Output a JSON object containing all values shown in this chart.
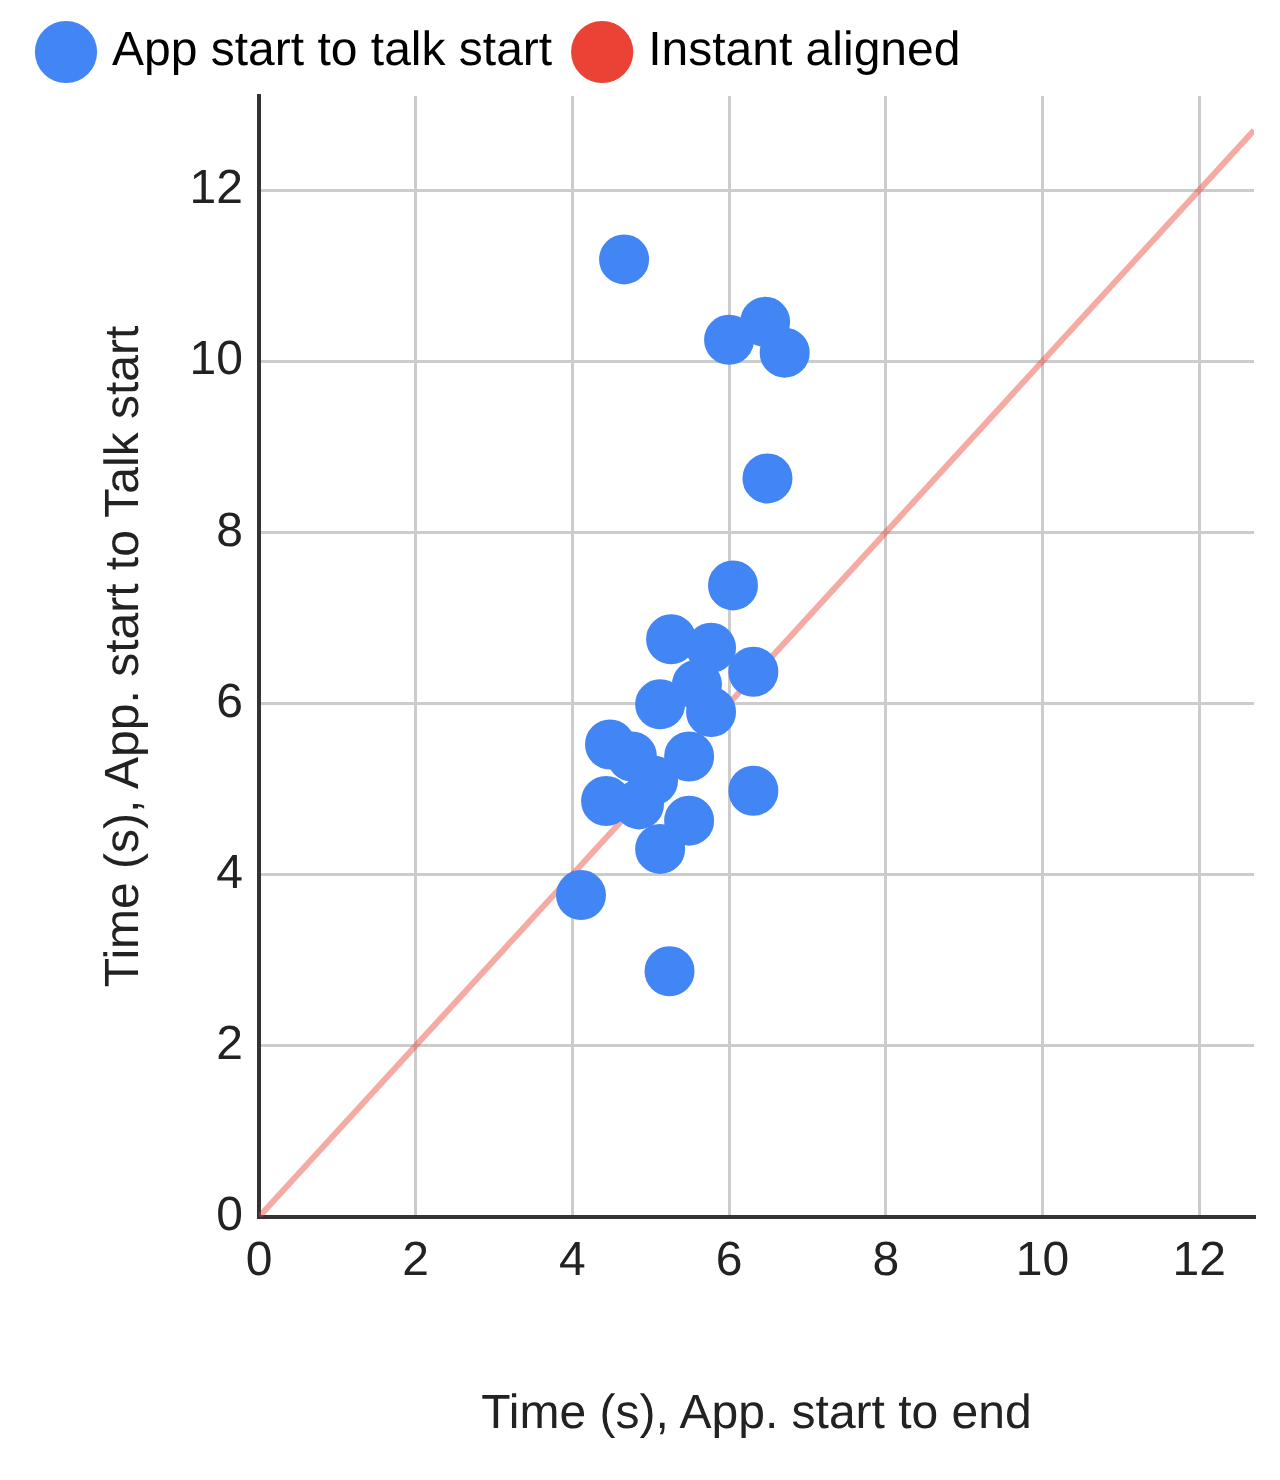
{
  "chart_data": {
    "type": "scatter",
    "xlabel": "Time (s), App. start to end",
    "ylabel": "Time (s), App. start to Talk start",
    "series": [
      {
        "name": "App start to talk start",
        "color": "#4285f4",
        "marker": "circle",
        "x": [
          4.66,
          6.0,
          6.46,
          6.71,
          6.49,
          6.05,
          5.26,
          5.77,
          6.31,
          5.12,
          5.77,
          5.49,
          4.48,
          4.76,
          4.43,
          4.85,
          5.49,
          5.12,
          6.31,
          4.11,
          5.24,
          5.03,
          5.59
        ],
        "values": [
          11.19,
          10.25,
          10.46,
          10.1,
          8.63,
          7.38,
          6.75,
          6.65,
          6.37,
          5.99,
          5.9,
          5.38,
          5.52,
          5.38,
          4.86,
          4.82,
          4.63,
          4.3,
          4.98,
          3.76,
          2.87,
          5.1,
          6.22
        ]
      },
      {
        "name": "Instant aligned",
        "color": "#ea4335",
        "type": "line",
        "marker": "none",
        "x": [
          0,
          12.7
        ],
        "values": [
          0,
          12.7
        ]
      }
    ],
    "xlim": [
      0,
      12.7
    ],
    "ylim": [
      0,
      13.1
    ],
    "xticks": [
      0,
      2,
      4,
      6,
      8,
      10,
      12
    ],
    "yticks": [
      0,
      2,
      4,
      6,
      8,
      10,
      12
    ],
    "grid": true,
    "legend": "top"
  }
}
